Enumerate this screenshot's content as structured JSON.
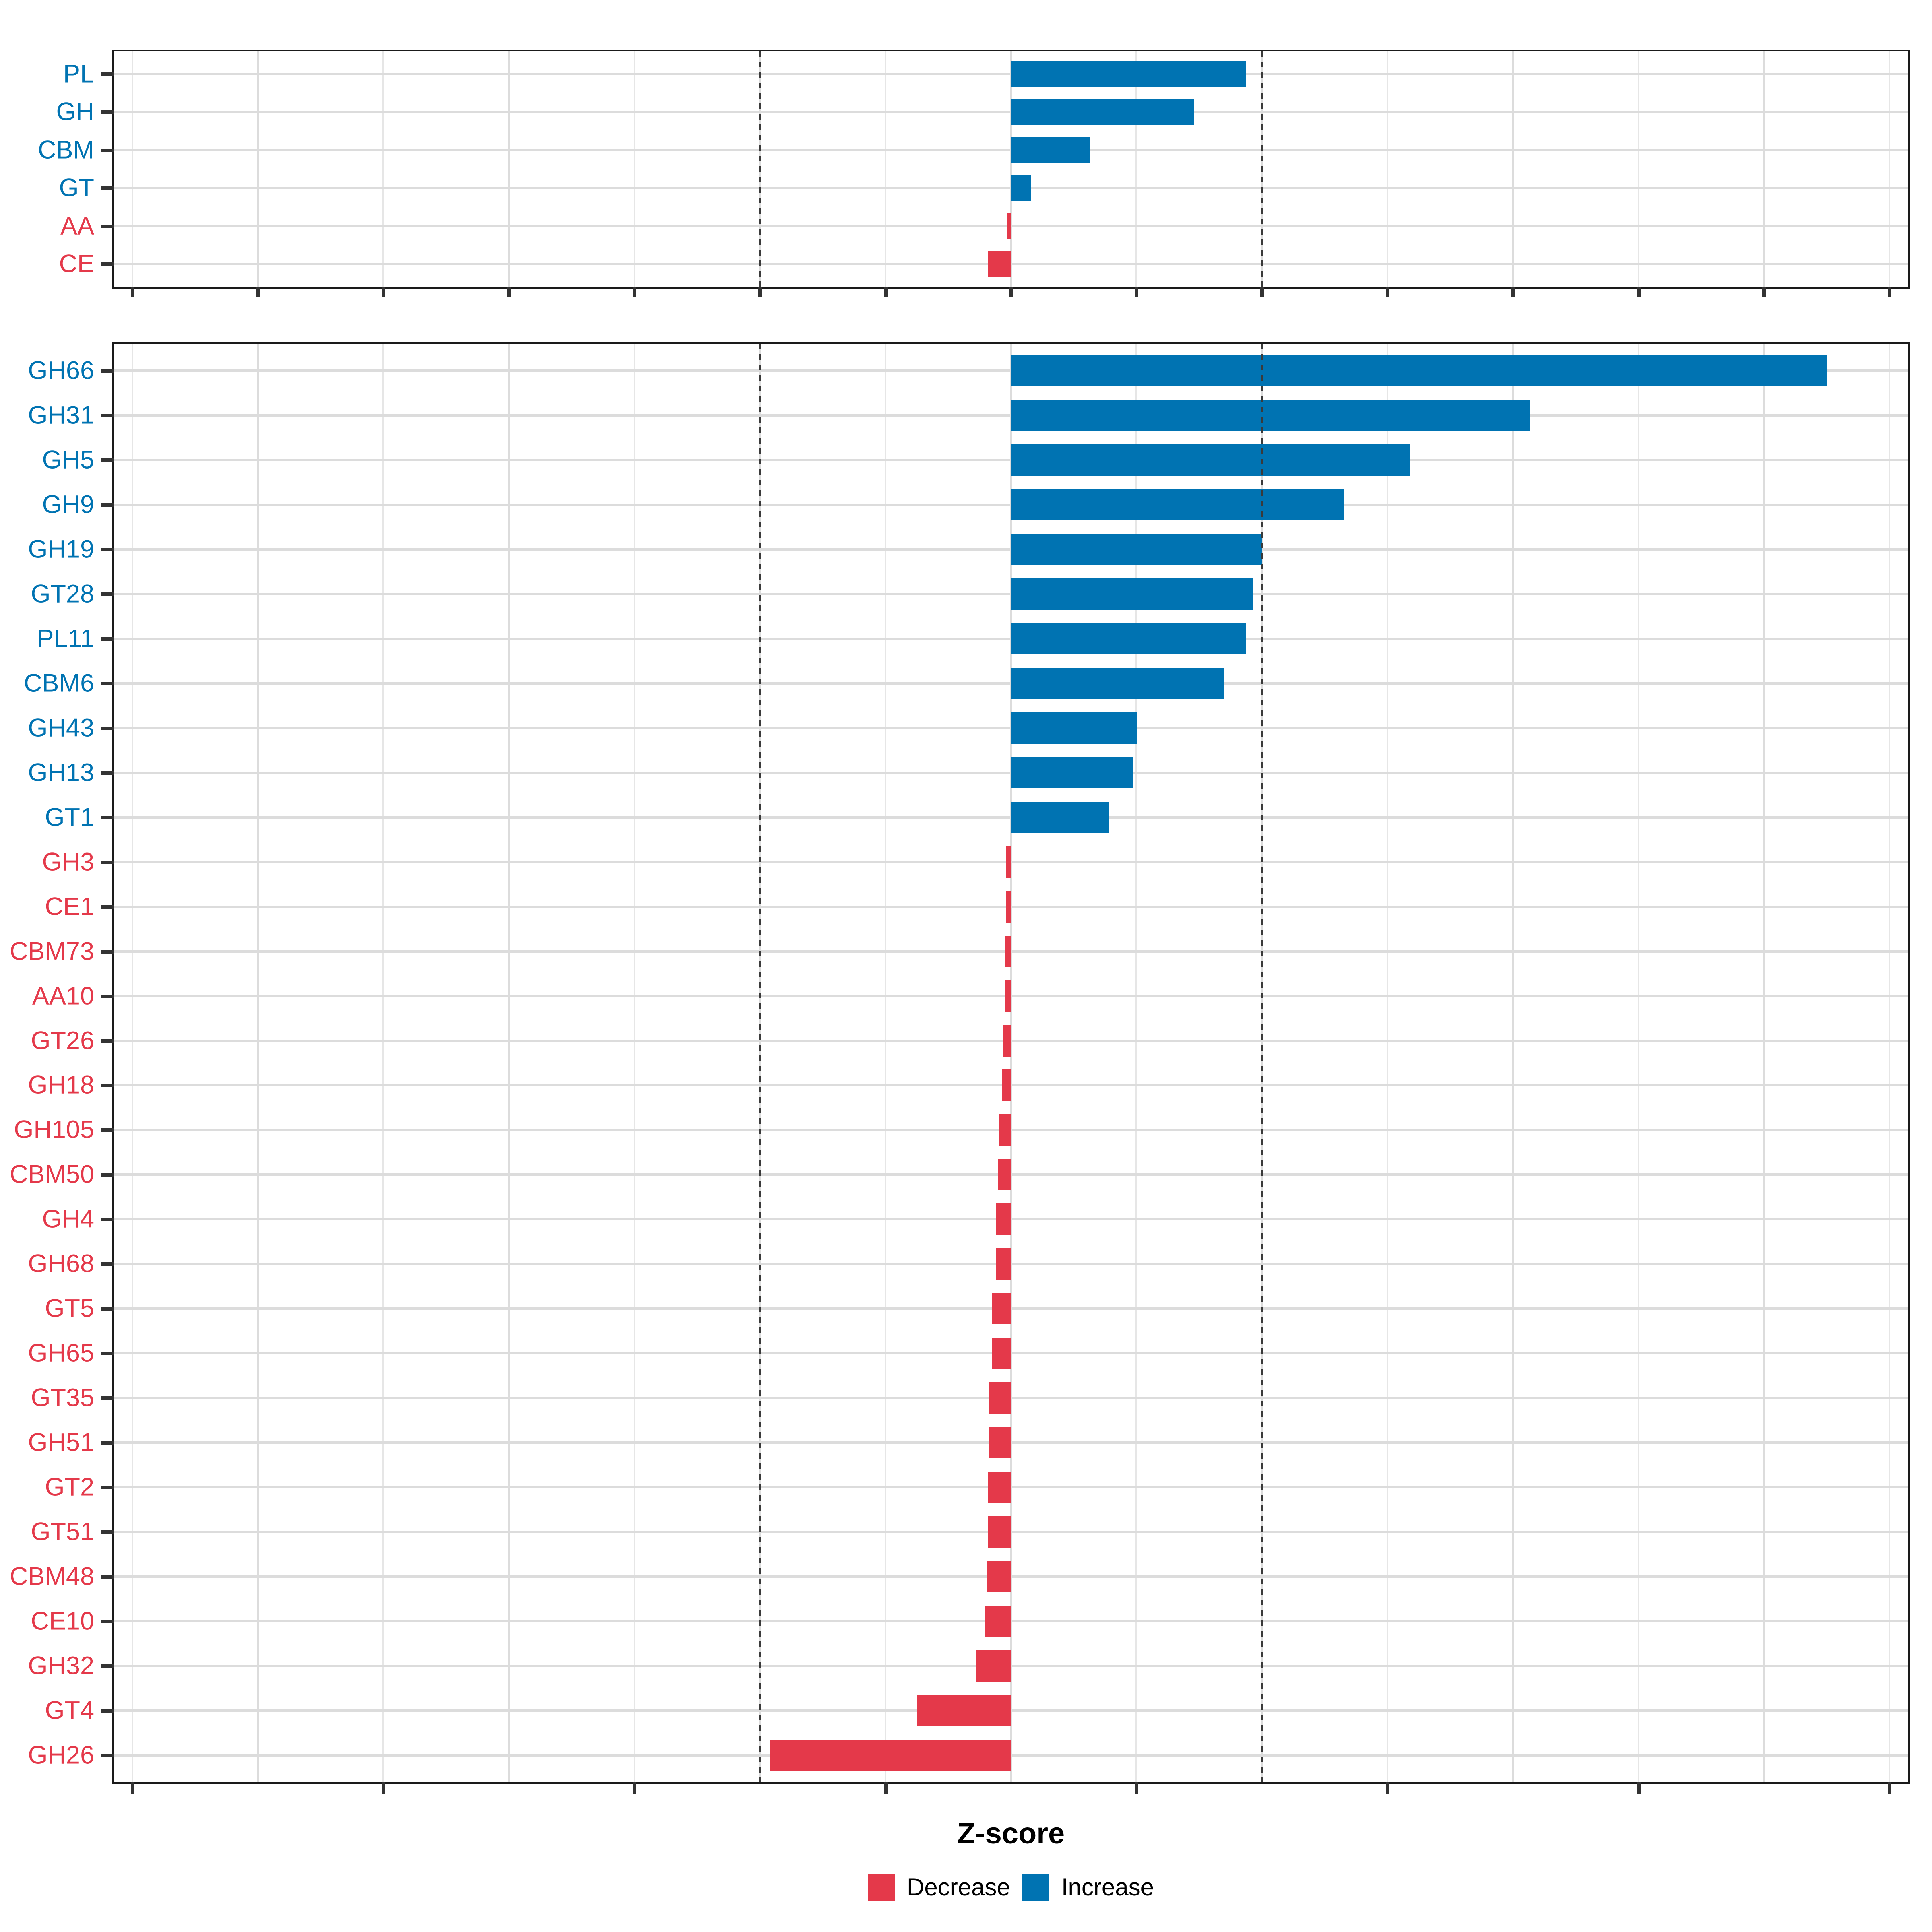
{
  "axis": {
    "xlabel": "Z-score",
    "ticks": [
      -6,
      -4,
      -2,
      0,
      2,
      4,
      6
    ],
    "xlim": [
      -7.15,
      7.15
    ],
    "reference_lines": [
      -2,
      2
    ],
    "top_panel_tick_step": 1,
    "bottom_panel_tick_step": 2
  },
  "legend": {
    "items": [
      {
        "label": "Decrease",
        "color": "#e4394a"
      },
      {
        "label": "Increase",
        "color": "#0073b2"
      }
    ]
  },
  "colors": {
    "increase": "#0073b2",
    "decrease": "#e4394a",
    "grid_major": "#dcdcdc",
    "grid_minor": "#e6e6e6",
    "axis_text": "#4d4d4d",
    "panel_border": "#1a1a1a",
    "reference_line": "#3a3a3a"
  },
  "chart_data": [
    {
      "type": "bar",
      "orientation": "horizontal",
      "panel": "top",
      "title": "",
      "xlabel": "Z-score",
      "xlim": [
        -7.15,
        7.15
      ],
      "grid": true,
      "legend_position": "bottom",
      "categories": [
        "PL",
        "GH",
        "CBM",
        "GT",
        "AA",
        "CE"
      ],
      "values": [
        1.87,
        1.46,
        0.63,
        0.16,
        -0.03,
        -0.18
      ],
      "directions": [
        "Increase",
        "Increase",
        "Increase",
        "Increase",
        "Decrease",
        "Decrease"
      ]
    },
    {
      "type": "bar",
      "orientation": "horizontal",
      "panel": "bottom",
      "title": "",
      "xlabel": "Z-score",
      "xlim": [
        -7.15,
        7.15
      ],
      "grid": true,
      "legend_position": "bottom",
      "categories": [
        "GH66",
        "GH31",
        "GH5",
        "GH9",
        "GH19",
        "GT28",
        "PL11",
        "CBM6",
        "GH43",
        "GH13",
        "GT1",
        "GH3",
        "CE1",
        "CBM73",
        "AA10",
        "GT26",
        "GH18",
        "GH105",
        "CBM50",
        "GH4",
        "GH68",
        "GT5",
        "GH65",
        "GT35",
        "GH51",
        "GT2",
        "GT51",
        "CBM48",
        "CE10",
        "GH32",
        "GT4",
        "GH26"
      ],
      "values": [
        6.5,
        4.14,
        3.18,
        2.65,
        2.0,
        1.93,
        1.87,
        1.7,
        1.01,
        0.97,
        0.78,
        -0.04,
        -0.04,
        -0.05,
        -0.05,
        -0.06,
        -0.07,
        -0.09,
        -0.1,
        -0.12,
        -0.12,
        -0.15,
        -0.15,
        -0.17,
        -0.17,
        -0.18,
        -0.18,
        -0.19,
        -0.21,
        -0.28,
        -0.75,
        -1.92
      ],
      "directions": [
        "Increase",
        "Increase",
        "Increase",
        "Increase",
        "Increase",
        "Increase",
        "Increase",
        "Increase",
        "Increase",
        "Increase",
        "Increase",
        "Decrease",
        "Decrease",
        "Decrease",
        "Decrease",
        "Decrease",
        "Decrease",
        "Decrease",
        "Decrease",
        "Decrease",
        "Decrease",
        "Decrease",
        "Decrease",
        "Decrease",
        "Decrease",
        "Decrease",
        "Decrease",
        "Decrease",
        "Decrease",
        "Decrease",
        "Decrease",
        "Decrease"
      ]
    }
  ]
}
